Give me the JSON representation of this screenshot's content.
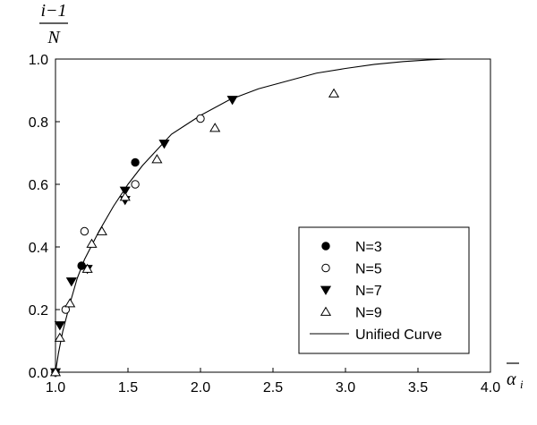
{
  "chart_data": {
    "type": "scatter",
    "xlabel": "ᾱi",
    "ylabel": "i−1 / N",
    "ylabel_numerator": "i−1",
    "ylabel_denominator": "N",
    "xlabel_symbol": "α",
    "xlabel_subscript": "i",
    "xlim": [
      1.0,
      4.0
    ],
    "ylim": [
      0.0,
      1.0
    ],
    "x_ticks": [
      "1.0",
      "1.5",
      "2.0",
      "2.5",
      "3.0",
      "3.5",
      "4.0"
    ],
    "y_ticks": [
      "0.0",
      "0.2",
      "0.4",
      "0.6",
      "0.8",
      "1.0"
    ],
    "grid": false,
    "legend_position": "bottom-right",
    "series": [
      {
        "name": "N=3",
        "marker": "filled-circle",
        "points": [
          [
            1.18,
            0.34
          ],
          [
            1.55,
            0.67
          ],
          [
            1.0,
            0.0
          ]
        ]
      },
      {
        "name": "N=5",
        "marker": "open-circle",
        "points": [
          [
            1.07,
            0.2
          ],
          [
            1.2,
            0.45
          ],
          [
            1.55,
            0.6
          ],
          [
            2.0,
            0.81
          ],
          [
            1.0,
            0.0
          ]
        ]
      },
      {
        "name": "N=7",
        "marker": "filled-triangle-down",
        "points": [
          [
            1.03,
            0.15
          ],
          [
            1.11,
            0.29
          ],
          [
            1.22,
            0.33
          ],
          [
            1.48,
            0.55
          ],
          [
            1.48,
            0.58
          ],
          [
            1.75,
            0.73
          ],
          [
            2.22,
            0.87
          ],
          [
            1.0,
            0.0
          ]
        ]
      },
      {
        "name": "N=9",
        "marker": "open-triangle-up",
        "points": [
          [
            1.03,
            0.11
          ],
          [
            1.1,
            0.22
          ],
          [
            1.22,
            0.33
          ],
          [
            1.25,
            0.41
          ],
          [
            1.32,
            0.45
          ],
          [
            1.48,
            0.56
          ],
          [
            1.7,
            0.68
          ],
          [
            2.1,
            0.78
          ],
          [
            2.92,
            0.89
          ],
          [
            1.0,
            0.0
          ]
        ]
      },
      {
        "name": "Unified Curve",
        "marker": "line",
        "points": [
          [
            1.0,
            0.0
          ],
          [
            1.02,
            0.06
          ],
          [
            1.05,
            0.13
          ],
          [
            1.1,
            0.22
          ],
          [
            1.15,
            0.3
          ],
          [
            1.2,
            0.36
          ],
          [
            1.3,
            0.45
          ],
          [
            1.4,
            0.53
          ],
          [
            1.5,
            0.6
          ],
          [
            1.6,
            0.66
          ],
          [
            1.7,
            0.71
          ],
          [
            1.8,
            0.76
          ],
          [
            1.9,
            0.79
          ],
          [
            2.0,
            0.82
          ],
          [
            2.2,
            0.87
          ],
          [
            2.4,
            0.905
          ],
          [
            2.6,
            0.93
          ],
          [
            2.8,
            0.955
          ],
          [
            3.0,
            0.97
          ],
          [
            3.2,
            0.983
          ],
          [
            3.4,
            0.992
          ],
          [
            3.6,
            0.998
          ],
          [
            3.7,
            1.0
          ]
        ]
      }
    ]
  }
}
